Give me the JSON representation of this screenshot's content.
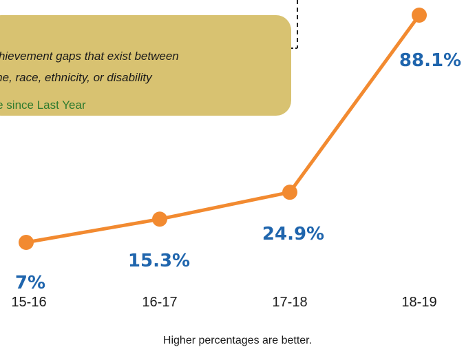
{
  "callout": {
    "line1": "achievement gaps that exist between",
    "line2": "ome, race, ethnicity, or disability",
    "line3": "ure since Last Year"
  },
  "footnote": "Higher percentages are better.",
  "colors": {
    "line": "#f28a30",
    "point": "#f28a30",
    "data_label": "#1f65ad",
    "callout_bg": "#d8c271",
    "callout_green": "#2e7a2e"
  },
  "chart_data": {
    "type": "line",
    "categories": [
      "15-16",
      "16-17",
      "17-18",
      "18-19"
    ],
    "series": [
      {
        "values": [
          7,
          15.3,
          24.9,
          88.1
        ],
        "labels": [
          "7%",
          "15.3%",
          "24.9%",
          "88.1%"
        ]
      }
    ],
    "ylim": [
      0,
      90
    ],
    "grid": false,
    "legend": "none"
  }
}
